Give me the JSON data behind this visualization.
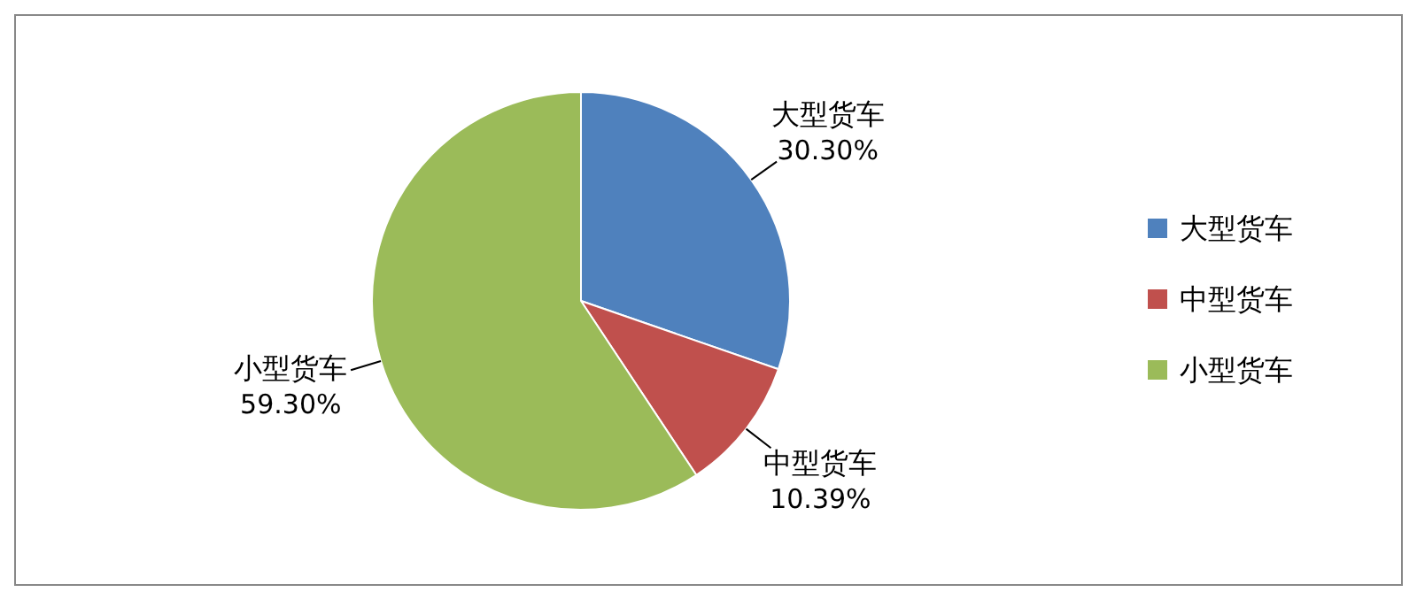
{
  "chart_data": {
    "type": "pie",
    "categories": [
      "大型货车",
      "中型货车",
      "小型货车"
    ],
    "values": [
      30.3,
      10.39,
      59.3
    ],
    "colors": [
      "#4f81bd",
      "#c0504d",
      "#9bbb59"
    ],
    "value_labels": [
      "30.30%",
      "10.39%",
      "59.30%"
    ],
    "legend": "right"
  }
}
